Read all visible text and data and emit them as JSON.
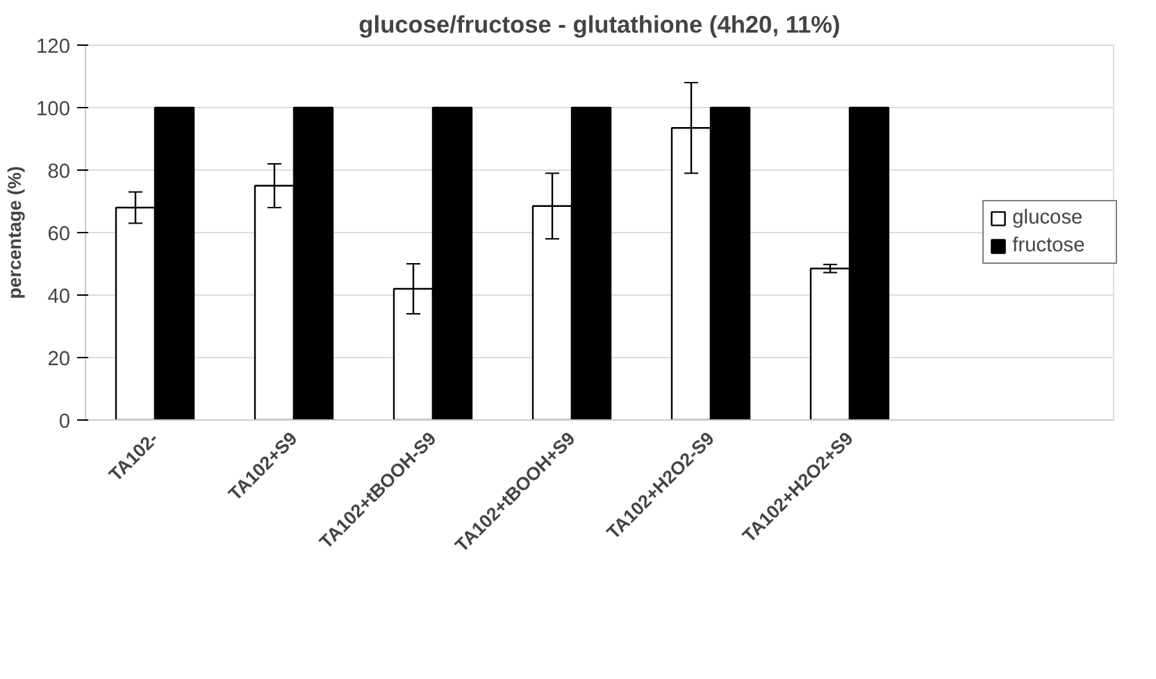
{
  "chart_data": {
    "type": "bar",
    "title": "glucose/fructose - glutathione (4h20, 11%)",
    "ylabel": "percentage (%)",
    "categories": [
      "TA102-",
      "TA102+S9",
      "TA102+tBOOH-S9",
      "TA102+tBOOH+S9",
      "TA102+H2O2-S9",
      "TA102+H2O2+S9"
    ],
    "series": [
      {
        "name": "glucose",
        "color": "#ffffff",
        "values": [
          68,
          75,
          42,
          68.5,
          93.5,
          48.5
        ],
        "errors": [
          5,
          7,
          8,
          10.5,
          14.5,
          1.3
        ]
      },
      {
        "name": "fructose",
        "color": "#000000",
        "values": [
          100,
          100,
          100,
          100,
          100,
          100
        ]
      }
    ],
    "ylim": [
      0,
      120
    ],
    "yticks": [
      0,
      20,
      40,
      60,
      80,
      100,
      120
    ],
    "grid": "y",
    "legend": "right"
  }
}
